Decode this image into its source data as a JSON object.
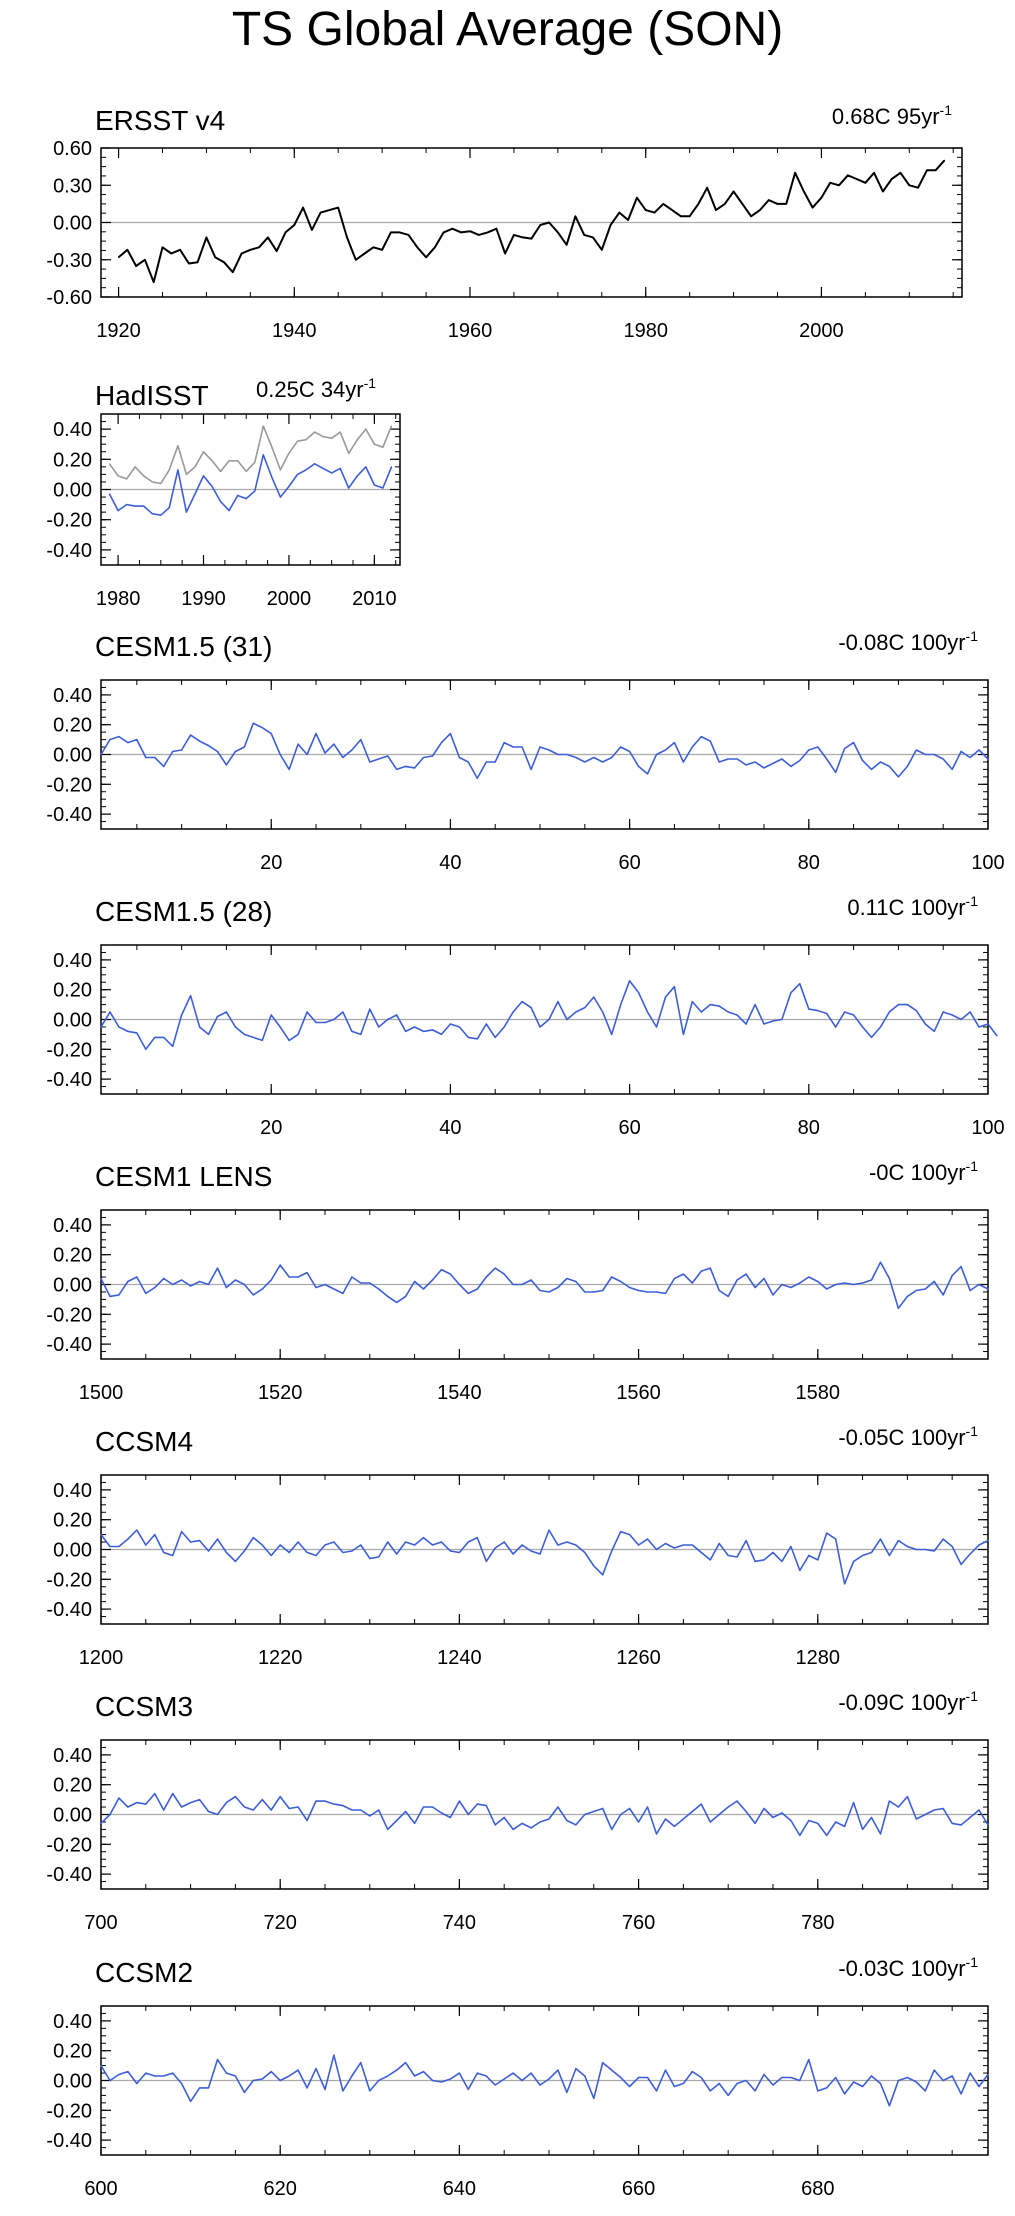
{
  "title": "TS Global Average (SON)",
  "colors": {
    "obs": "#000000",
    "model": "#3d5fd6",
    "detrended_obs": "#999999",
    "zero": "#aaaaaa",
    "frame": "#000000"
  },
  "chart_data": [
    {
      "id": "ersst",
      "type": "line",
      "title": "ERSST v4",
      "trend": {
        "text": "0.68C 95yr",
        "sup": "-1"
      },
      "xlim": [
        1918,
        2016
      ],
      "ylim": [
        -0.6,
        0.6
      ],
      "xticks": [
        1920,
        1940,
        1960,
        1980,
        2000
      ],
      "yticks": [
        0.6,
        0.3,
        0.0,
        -0.3,
        -0.6
      ],
      "ytick_labels": [
        "0.60",
        "0.30",
        "0.00",
        "-0.30",
        "-0.60"
      ],
      "series": [
        {
          "color": "#000000",
          "x_start": 1920,
          "values": [
            -0.28,
            -0.22,
            -0.35,
            -0.3,
            -0.48,
            -0.2,
            -0.25,
            -0.22,
            -0.33,
            -0.32,
            -0.12,
            -0.28,
            -0.32,
            -0.4,
            -0.25,
            -0.22,
            -0.2,
            -0.12,
            -0.23,
            -0.08,
            -0.02,
            0.12,
            -0.06,
            0.08,
            0.1,
            0.12,
            -0.12,
            -0.3,
            -0.25,
            -0.2,
            -0.22,
            -0.08,
            -0.08,
            -0.1,
            -0.2,
            -0.28,
            -0.2,
            -0.08,
            -0.05,
            -0.08,
            -0.07,
            -0.1,
            -0.08,
            -0.05,
            -0.25,
            -0.1,
            -0.12,
            -0.13,
            -0.02,
            0.0,
            -0.08,
            -0.18,
            0.05,
            -0.1,
            -0.12,
            -0.22,
            -0.02,
            0.08,
            0.02,
            0.2,
            0.1,
            0.08,
            0.15,
            0.1,
            0.05,
            0.05,
            0.15,
            0.28,
            0.1,
            0.15,
            0.25,
            0.15,
            0.05,
            0.1,
            0.18,
            0.15,
            0.15,
            0.4,
            0.25,
            0.12,
            0.2,
            0.32,
            0.3,
            0.38,
            0.35,
            0.32,
            0.4,
            0.25,
            0.35,
            0.4,
            0.3,
            0.28,
            0.42,
            0.42,
            0.5
          ]
        }
      ]
    },
    {
      "id": "hadisst",
      "type": "line",
      "title": "HadISST",
      "trend": {
        "text": "0.25C 34yr",
        "sup": "-1"
      },
      "xlim": [
        1978,
        2013
      ],
      "ylim": [
        -0.5,
        0.5
      ],
      "xticks": [
        1980,
        1990,
        2000,
        2010
      ],
      "yticks": [
        0.4,
        0.2,
        0.0,
        -0.2,
        -0.4
      ],
      "ytick_labels": [
        "0.40",
        "0.20",
        "0.00",
        "-0.20",
        "-0.40"
      ],
      "series": [
        {
          "color": "#999999",
          "x_start": 1979,
          "values": [
            0.17,
            0.09,
            0.07,
            0.15,
            0.09,
            0.05,
            0.04,
            0.13,
            0.29,
            0.1,
            0.15,
            0.25,
            0.19,
            0.12,
            0.19,
            0.19,
            0.12,
            0.18,
            0.42,
            0.28,
            0.13,
            0.24,
            0.32,
            0.33,
            0.38,
            0.35,
            0.34,
            0.38,
            0.24,
            0.33,
            0.4,
            0.3,
            0.28,
            0.42
          ]
        },
        {
          "color": "#3d5fd6",
          "x_start": 1979,
          "values": [
            -0.03,
            -0.14,
            -0.1,
            -0.11,
            -0.11,
            -0.16,
            -0.17,
            -0.12,
            0.13,
            -0.15,
            -0.03,
            0.09,
            0.02,
            -0.08,
            -0.14,
            -0.04,
            -0.06,
            -0.01,
            0.23,
            0.08,
            -0.05,
            0.02,
            0.1,
            0.13,
            0.17,
            0.14,
            0.11,
            0.14,
            0.01,
            0.09,
            0.15,
            0.03,
            0.01,
            0.15
          ]
        }
      ]
    },
    {
      "id": "cesm15_31",
      "type": "line",
      "title": "CESM1.5 (31)",
      "trend": {
        "text": "-0.08C 100yr",
        "sup": "-1"
      },
      "xlim": [
        1,
        100
      ],
      "ylim": [
        -0.5,
        0.5
      ],
      "xticks": [
        20,
        40,
        60,
        80,
        100
      ],
      "yticks": [
        0.4,
        0.2,
        0.0,
        -0.2,
        -0.4
      ],
      "ytick_labels": [
        "0.40",
        "0.20",
        "0.00",
        "-0.20",
        "-0.40"
      ],
      "series": [
        {
          "color": "#3d5fd6",
          "x_start": 1,
          "values": [
            0.0,
            0.1,
            0.12,
            0.08,
            0.1,
            -0.02,
            -0.02,
            -0.08,
            0.02,
            0.03,
            0.13,
            0.09,
            0.06,
            0.02,
            -0.07,
            0.02,
            0.05,
            0.21,
            0.18,
            0.14,
            0.0,
            -0.1,
            0.07,
            0.0,
            0.14,
            0.01,
            0.07,
            -0.02,
            0.03,
            0.1,
            -0.05,
            -0.03,
            -0.01,
            -0.1,
            -0.08,
            -0.09,
            -0.02,
            -0.01,
            0.08,
            0.14,
            -0.02,
            -0.05,
            -0.16,
            -0.05,
            -0.05,
            0.08,
            0.05,
            0.05,
            -0.1,
            0.05,
            0.03,
            0.0,
            0.0,
            -0.02,
            -0.05,
            -0.02,
            -0.05,
            -0.02,
            0.05,
            0.02,
            -0.08,
            -0.13,
            0.0,
            0.03,
            0.08,
            -0.05,
            0.05,
            0.12,
            0.09,
            -0.05,
            -0.03,
            -0.03,
            -0.07,
            -0.05,
            -0.09,
            -0.06,
            -0.03,
            -0.08,
            -0.04,
            0.03,
            0.05,
            -0.03,
            -0.12,
            0.04,
            0.08,
            -0.04,
            -0.1,
            -0.05,
            -0.08,
            -0.15,
            -0.08,
            0.03,
            0.0,
            0.0,
            -0.03,
            -0.1,
            0.02,
            -0.02,
            0.03,
            -0.03
          ]
        }
      ]
    },
    {
      "id": "cesm15_28",
      "type": "line",
      "title": "CESM1.5 (28)",
      "trend": {
        "text": "0.11C 100yr",
        "sup": "-1"
      },
      "xlim": [
        1,
        100
      ],
      "ylim": [
        -0.5,
        0.5
      ],
      "xticks": [
        20,
        40,
        60,
        80,
        100
      ],
      "yticks": [
        0.4,
        0.2,
        0.0,
        -0.2,
        -0.4
      ],
      "ytick_labels": [
        "0.40",
        "0.20",
        "0.00",
        "-0.20",
        "-0.40"
      ],
      "series": [
        {
          "color": "#3d5fd6",
          "x_start": 1,
          "values": [
            -0.05,
            0.05,
            -0.05,
            -0.08,
            -0.09,
            -0.2,
            -0.12,
            -0.12,
            -0.18,
            0.03,
            0.16,
            -0.05,
            -0.1,
            0.02,
            0.05,
            -0.05,
            -0.1,
            -0.12,
            -0.14,
            0.03,
            -0.05,
            -0.14,
            -0.1,
            0.05,
            -0.02,
            -0.02,
            0.0,
            0.05,
            -0.08,
            -0.1,
            0.07,
            -0.05,
            0.0,
            0.03,
            -0.08,
            -0.05,
            -0.08,
            -0.07,
            -0.1,
            -0.03,
            -0.05,
            -0.12,
            -0.13,
            -0.03,
            -0.12,
            -0.05,
            0.05,
            0.12,
            0.08,
            -0.05,
            0.0,
            0.12,
            0.0,
            0.05,
            0.08,
            0.15,
            0.05,
            -0.1,
            0.1,
            0.26,
            0.18,
            0.05,
            -0.05,
            0.15,
            0.22,
            -0.1,
            0.12,
            0.05,
            0.1,
            0.09,
            0.05,
            0.03,
            -0.03,
            0.1,
            -0.03,
            -0.01,
            0.0,
            0.18,
            0.24,
            0.07,
            0.06,
            0.04,
            -0.05,
            0.05,
            0.03,
            -0.05,
            -0.12,
            -0.05,
            0.05,
            0.1,
            0.1,
            0.06,
            -0.03,
            -0.08,
            0.05,
            0.03,
            0.0,
            0.05,
            -0.05,
            -0.03,
            -0.11
          ]
        }
      ]
    },
    {
      "id": "cesm1_lens",
      "type": "line",
      "title": "CESM1 LENS",
      "trend": {
        "text": "-0C 100yr",
        "sup": "-1"
      },
      "xlim": [
        1500,
        1599
      ],
      "ylim": [
        -0.5,
        0.5
      ],
      "xticks": [
        1500,
        1520,
        1540,
        1560,
        1580
      ],
      "yticks": [
        0.4,
        0.2,
        0.0,
        -0.2,
        -0.4
      ],
      "ytick_labels": [
        "0.40",
        "0.20",
        "0.00",
        "-0.20",
        "-0.40"
      ],
      "series": [
        {
          "color": "#3d5fd6",
          "x_start": 1500,
          "values": [
            0.04,
            -0.08,
            -0.07,
            0.02,
            0.05,
            -0.06,
            -0.02,
            0.04,
            0.0,
            0.03,
            -0.01,
            0.02,
            0.0,
            0.11,
            -0.02,
            0.03,
            0.0,
            -0.07,
            -0.03,
            0.03,
            0.13,
            0.05,
            0.05,
            0.08,
            -0.02,
            0.0,
            -0.03,
            -0.06,
            0.05,
            0.01,
            0.01,
            -0.03,
            -0.08,
            -0.12,
            -0.08,
            0.02,
            -0.03,
            0.03,
            0.1,
            0.07,
            0.0,
            -0.06,
            -0.03,
            0.05,
            0.11,
            0.07,
            0.0,
            0.0,
            0.03,
            -0.04,
            -0.05,
            -0.02,
            0.04,
            0.02,
            -0.05,
            -0.05,
            -0.04,
            0.05,
            0.02,
            -0.02,
            -0.04,
            -0.05,
            -0.05,
            -0.06,
            0.04,
            0.07,
            0.01,
            0.09,
            0.11,
            -0.04,
            -0.08,
            0.03,
            0.07,
            -0.02,
            0.04,
            -0.07,
            0.0,
            -0.02,
            0.01,
            0.05,
            0.02,
            -0.03,
            0.0,
            0.01,
            0.0,
            0.01,
            0.03,
            0.15,
            0.04,
            -0.16,
            -0.08,
            -0.04,
            -0.03,
            0.02,
            -0.07,
            0.06,
            0.12,
            -0.04,
            0.0,
            -0.03
          ]
        }
      ]
    },
    {
      "id": "ccsm4",
      "type": "line",
      "title": "CCSM4",
      "trend": {
        "text": "-0.05C 100yr",
        "sup": "-1"
      },
      "xlim": [
        1200,
        1299
      ],
      "ylim": [
        -0.5,
        0.5
      ],
      "xticks": [
        1200,
        1220,
        1240,
        1260,
        1280
      ],
      "yticks": [
        0.4,
        0.2,
        0.0,
        -0.2,
        -0.4
      ],
      "ytick_labels": [
        "0.40",
        "0.20",
        "0.00",
        "-0.20",
        "-0.40"
      ],
      "series": [
        {
          "color": "#3d5fd6",
          "x_start": 1200,
          "values": [
            0.1,
            0.02,
            0.02,
            0.07,
            0.13,
            0.03,
            0.1,
            -0.02,
            -0.04,
            0.12,
            0.05,
            0.06,
            -0.01,
            0.07,
            -0.02,
            -0.08,
            -0.01,
            0.08,
            0.03,
            -0.04,
            0.03,
            -0.02,
            0.05,
            -0.02,
            -0.04,
            0.03,
            0.05,
            -0.02,
            -0.01,
            0.03,
            -0.06,
            -0.05,
            0.05,
            -0.03,
            0.05,
            0.03,
            0.08,
            0.03,
            0.05,
            -0.01,
            -0.02,
            0.05,
            0.08,
            -0.08,
            0.01,
            0.05,
            -0.03,
            0.03,
            -0.01,
            -0.03,
            0.13,
            0.03,
            0.05,
            0.03,
            -0.02,
            -0.11,
            -0.17,
            -0.01,
            0.12,
            0.1,
            0.03,
            0.07,
            0.0,
            0.04,
            0.01,
            0.03,
            0.03,
            -0.02,
            -0.07,
            0.04,
            -0.04,
            -0.05,
            0.06,
            -0.08,
            -0.07,
            -0.02,
            -0.08,
            0.02,
            -0.14,
            -0.04,
            -0.07,
            0.11,
            0.07,
            -0.23,
            -0.08,
            -0.04,
            -0.02,
            0.07,
            -0.04,
            0.06,
            0.02,
            0.0,
            0.0,
            -0.01,
            0.07,
            0.02,
            -0.1,
            -0.03,
            0.03,
            0.06
          ]
        }
      ]
    },
    {
      "id": "ccsm3",
      "type": "line",
      "title": "CCSM3",
      "trend": {
        "text": "-0.09C 100yr",
        "sup": "-1"
      },
      "xlim": [
        700,
        799
      ],
      "ylim": [
        -0.5,
        0.5
      ],
      "xticks": [
        700,
        720,
        740,
        760,
        780
      ],
      "yticks": [
        0.4,
        0.2,
        0.0,
        -0.2,
        -0.4
      ],
      "ytick_labels": [
        "0.40",
        "0.20",
        "0.00",
        "-0.20",
        "-0.40"
      ],
      "series": [
        {
          "color": "#3d5fd6",
          "x_start": 700,
          "values": [
            -0.06,
            0.0,
            0.11,
            0.05,
            0.08,
            0.07,
            0.14,
            0.03,
            0.14,
            0.05,
            0.08,
            0.1,
            0.02,
            0.0,
            0.08,
            0.12,
            0.05,
            0.03,
            0.1,
            0.03,
            0.12,
            0.04,
            0.05,
            -0.04,
            0.09,
            0.09,
            0.07,
            0.06,
            0.03,
            0.03,
            -0.01,
            0.03,
            -0.1,
            -0.04,
            0.02,
            -0.06,
            0.05,
            0.05,
            0.01,
            -0.02,
            0.09,
            0.0,
            0.07,
            0.06,
            -0.07,
            -0.02,
            -0.1,
            -0.06,
            -0.09,
            -0.05,
            -0.03,
            0.05,
            -0.04,
            -0.07,
            0.0,
            0.02,
            0.04,
            -0.1,
            0.0,
            0.04,
            -0.05,
            0.05,
            -0.13,
            -0.03,
            -0.08,
            -0.03,
            0.02,
            0.07,
            -0.05,
            0.0,
            0.05,
            0.09,
            0.02,
            -0.06,
            0.04,
            -0.02,
            0.01,
            -0.04,
            -0.14,
            -0.04,
            -0.06,
            -0.14,
            -0.05,
            -0.08,
            0.08,
            -0.1,
            -0.02,
            -0.13,
            0.09,
            0.05,
            0.12,
            -0.03,
            0.0,
            0.03,
            0.04,
            -0.06,
            -0.07,
            -0.02,
            0.03,
            -0.07
          ]
        }
      ]
    },
    {
      "id": "ccsm2",
      "type": "line",
      "title": "CCSM2",
      "trend": {
        "text": "-0.03C 100yr",
        "sup": "-1"
      },
      "xlim": [
        600,
        699
      ],
      "ylim": [
        -0.5,
        0.5
      ],
      "xticks": [
        600,
        620,
        640,
        660,
        680
      ],
      "yticks": [
        0.4,
        0.2,
        0.0,
        -0.2,
        -0.4
      ],
      "ytick_labels": [
        "0.40",
        "0.20",
        "0.00",
        "-0.20",
        "-0.40"
      ],
      "series": [
        {
          "color": "#3d5fd6",
          "x_start": 600,
          "values": [
            0.1,
            0.0,
            0.04,
            0.06,
            -0.02,
            0.05,
            0.03,
            0.03,
            0.05,
            -0.02,
            -0.14,
            -0.05,
            -0.05,
            0.14,
            0.05,
            0.03,
            -0.08,
            0.0,
            0.01,
            0.06,
            0.0,
            0.03,
            0.07,
            -0.05,
            0.08,
            -0.06,
            0.17,
            -0.07,
            0.03,
            0.12,
            -0.07,
            0.0,
            0.03,
            0.07,
            0.12,
            0.03,
            0.06,
            0.0,
            -0.01,
            0.01,
            0.05,
            -0.06,
            0.05,
            0.03,
            -0.03,
            0.01,
            0.05,
            0.0,
            0.05,
            -0.03,
            0.01,
            0.07,
            -0.08,
            0.08,
            0.03,
            -0.12,
            0.12,
            0.07,
            0.02,
            -0.04,
            0.02,
            0.02,
            -0.07,
            0.07,
            -0.04,
            -0.02,
            0.06,
            0.02,
            -0.07,
            -0.02,
            -0.1,
            -0.02,
            0.0,
            -0.07,
            0.04,
            -0.03,
            0.02,
            0.02,
            0.0,
            0.14,
            -0.07,
            -0.05,
            0.02,
            -0.09,
            -0.01,
            -0.04,
            0.03,
            -0.02,
            -0.17,
            0.0,
            0.02,
            -0.01,
            -0.07,
            0.07,
            0.0,
            0.03,
            -0.09,
            0.05,
            -0.04,
            0.04
          ]
        }
      ]
    }
  ]
}
